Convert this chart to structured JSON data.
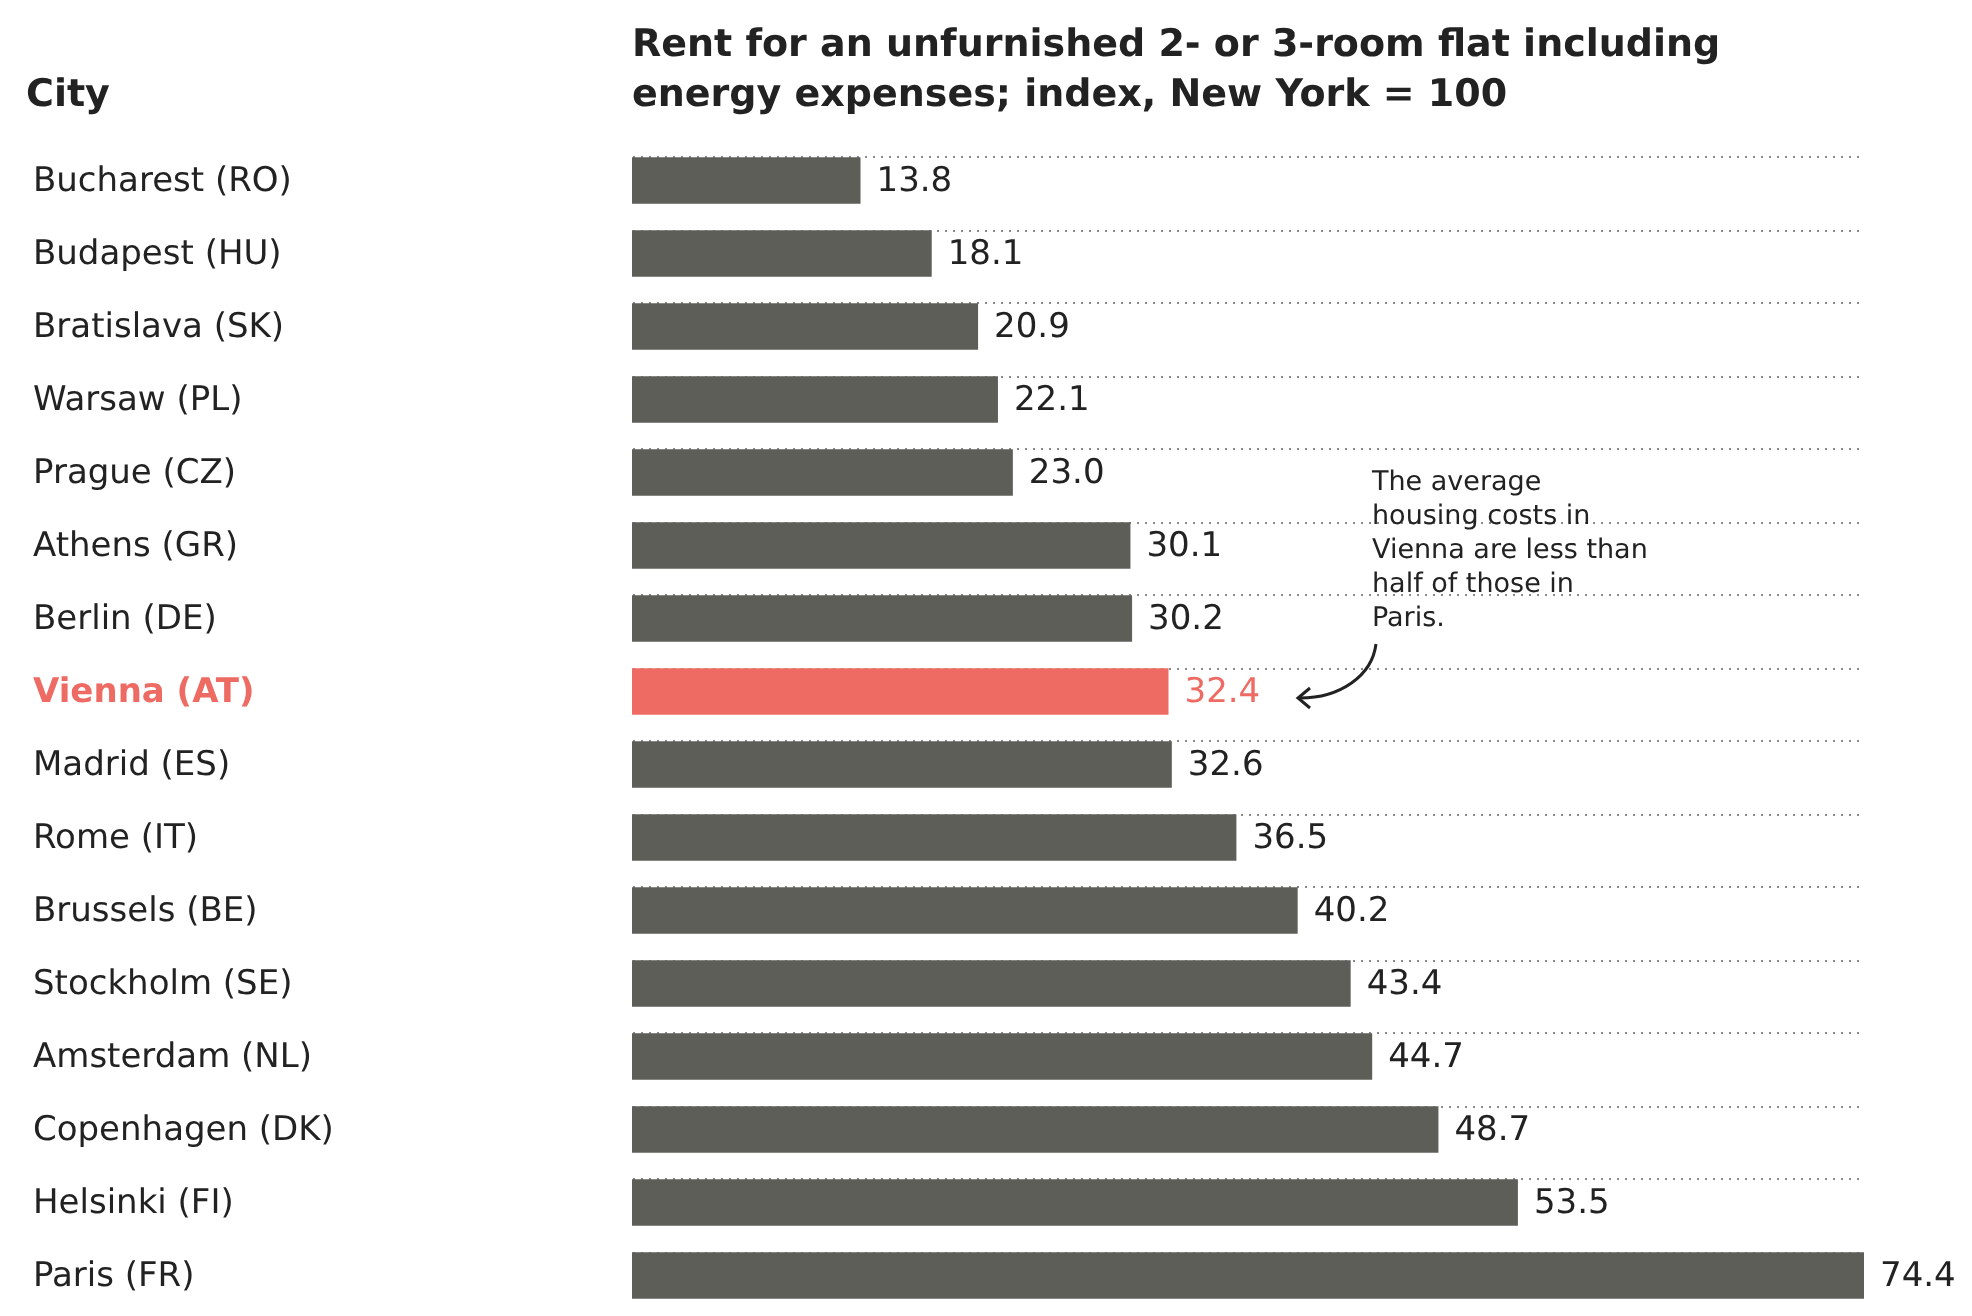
{
  "chart_data": {
    "type": "bar",
    "orientation": "horizontal",
    "title": "Rent for an unfurnished 2- or 3-room flat including energy expenses; index, New York = 100",
    "ylabel": "City",
    "categories": [
      "Bucharest (RO)",
      "Budapest (HU)",
      "Bratislava (SK)",
      "Warsaw (PL)",
      "Prague (CZ)",
      "Athens (GR)",
      "Berlin (DE)",
      "Vienna (AT)",
      "Madrid (ES)",
      "Rome (IT)",
      "Brussels (BE)",
      "Stockholm (SE)",
      "Amsterdam (NL)",
      "Copenhagen (DK)",
      "Helsinki (FI)",
      "Paris (FR)"
    ],
    "values": [
      13.8,
      18.1,
      20.9,
      22.1,
      23.0,
      30.1,
      30.2,
      32.4,
      32.6,
      36.5,
      40.2,
      43.4,
      44.7,
      48.7,
      53.5,
      74.4
    ],
    "value_labels": [
      "13.8",
      "18.1",
      "20.9",
      "22.1",
      "23.0",
      "30.1",
      "30.2",
      "32.4",
      "32.6",
      "36.5",
      "40.2",
      "43.4",
      "44.7",
      "48.7",
      "53.5",
      "74.4"
    ],
    "colors": [
      "#5e5e59",
      "#5e5e59",
      "#5e5e59",
      "#5e5e59",
      "#5e5e59",
      "#5e5e59",
      "#5e5e59",
      "#ee6b63",
      "#5e5e59",
      "#5e5e59",
      "#5e5e59",
      "#5e5e59",
      "#5e5e59",
      "#5e5e59",
      "#5e5e59",
      "#5e5e59"
    ],
    "annotations": [
      "The average housing costs in Vienna are less than half of those in Paris."
    ],
    "grid": "y"
  }
}
